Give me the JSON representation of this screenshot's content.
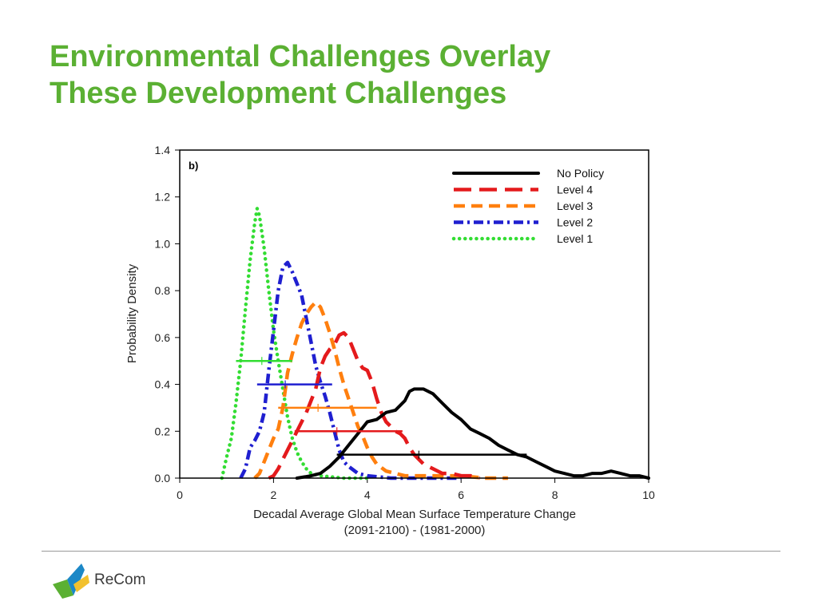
{
  "slide": {
    "title_line1": "Environmental Challenges Overlay",
    "title_line2": "These Development Challenges",
    "logo_text": "ReCom"
  },
  "chart_data": {
    "type": "line",
    "panel_label": "b)",
    "xlabel": "Decadal Average Global Mean Surface Temperature Change",
    "xlabel2": "(2091-2100) - (1981-2000)",
    "ylabel": "Probability Density",
    "xlim": [
      0,
      10
    ],
    "ylim": [
      0,
      1.4
    ],
    "xticks": [
      0,
      2,
      4,
      6,
      8,
      10
    ],
    "yticks": [
      0.0,
      0.2,
      0.4,
      0.6,
      0.8,
      1.0,
      1.2,
      1.4
    ],
    "ytick_labels": [
      "0.0",
      "0.2",
      "0.4",
      "0.6",
      "0.8",
      "1.0",
      "1.2",
      "1.4"
    ],
    "legend_position": "top-right",
    "series": [
      {
        "name": "No Policy",
        "color": "#000000",
        "dash": "solid",
        "points": [
          [
            2.5,
            0.0
          ],
          [
            2.8,
            0.01
          ],
          [
            3.0,
            0.02
          ],
          [
            3.2,
            0.05
          ],
          [
            3.4,
            0.09
          ],
          [
            3.6,
            0.14
          ],
          [
            3.8,
            0.19
          ],
          [
            4.0,
            0.24
          ],
          [
            4.2,
            0.25
          ],
          [
            4.4,
            0.28
          ],
          [
            4.6,
            0.29
          ],
          [
            4.8,
            0.33
          ],
          [
            4.9,
            0.37
          ],
          [
            5.0,
            0.38
          ],
          [
            5.2,
            0.38
          ],
          [
            5.4,
            0.36
          ],
          [
            5.6,
            0.32
          ],
          [
            5.8,
            0.28
          ],
          [
            6.0,
            0.25
          ],
          [
            6.2,
            0.21
          ],
          [
            6.4,
            0.19
          ],
          [
            6.6,
            0.17
          ],
          [
            6.8,
            0.14
          ],
          [
            7.0,
            0.12
          ],
          [
            7.2,
            0.1
          ],
          [
            7.4,
            0.09
          ],
          [
            7.6,
            0.07
          ],
          [
            7.8,
            0.05
          ],
          [
            8.0,
            0.03
          ],
          [
            8.2,
            0.02
          ],
          [
            8.4,
            0.01
          ],
          [
            8.6,
            0.01
          ],
          [
            8.8,
            0.02
          ],
          [
            9.0,
            0.02
          ],
          [
            9.2,
            0.03
          ],
          [
            9.4,
            0.02
          ],
          [
            9.6,
            0.01
          ],
          [
            9.8,
            0.01
          ],
          [
            10.0,
            0.0
          ]
        ],
        "interval": {
          "y": 0.1,
          "low": 3.35,
          "mid": 5.1,
          "high": 7.4
        }
      },
      {
        "name": "Level 4",
        "color": "#e41a1c",
        "dash": "long-dash",
        "points": [
          [
            1.9,
            0.0
          ],
          [
            2.0,
            0.01
          ],
          [
            2.1,
            0.04
          ],
          [
            2.2,
            0.08
          ],
          [
            2.3,
            0.12
          ],
          [
            2.5,
            0.2
          ],
          [
            2.7,
            0.28
          ],
          [
            2.9,
            0.38
          ],
          [
            3.0,
            0.47
          ],
          [
            3.1,
            0.52
          ],
          [
            3.2,
            0.55
          ],
          [
            3.3,
            0.57
          ],
          [
            3.4,
            0.61
          ],
          [
            3.5,
            0.62
          ],
          [
            3.6,
            0.6
          ],
          [
            3.7,
            0.55
          ],
          [
            3.8,
            0.5
          ],
          [
            3.9,
            0.47
          ],
          [
            4.0,
            0.46
          ],
          [
            4.1,
            0.41
          ],
          [
            4.2,
            0.34
          ],
          [
            4.3,
            0.28
          ],
          [
            4.4,
            0.24
          ],
          [
            4.5,
            0.22
          ],
          [
            4.6,
            0.2
          ],
          [
            4.7,
            0.19
          ],
          [
            4.8,
            0.17
          ],
          [
            4.9,
            0.13
          ],
          [
            5.0,
            0.1
          ],
          [
            5.2,
            0.06
          ],
          [
            5.4,
            0.04
          ],
          [
            5.6,
            0.02
          ],
          [
            5.8,
            0.02
          ],
          [
            6.0,
            0.01
          ],
          [
            6.2,
            0.01
          ],
          [
            6.4,
            0.0
          ]
        ],
        "interval": {
          "y": 0.2,
          "low": 2.45,
          "mid": 3.35,
          "high": 4.75
        }
      },
      {
        "name": "Level 3",
        "color": "#ff7f0e",
        "dash": "dash",
        "points": [
          [
            1.6,
            0.0
          ],
          [
            1.7,
            0.02
          ],
          [
            1.8,
            0.07
          ],
          [
            1.9,
            0.12
          ],
          [
            2.0,
            0.17
          ],
          [
            2.1,
            0.21
          ],
          [
            2.2,
            0.3
          ],
          [
            2.3,
            0.45
          ],
          [
            2.4,
            0.53
          ],
          [
            2.5,
            0.6
          ],
          [
            2.6,
            0.66
          ],
          [
            2.7,
            0.7
          ],
          [
            2.8,
            0.73
          ],
          [
            2.9,
            0.75
          ],
          [
            3.0,
            0.73
          ],
          [
            3.1,
            0.68
          ],
          [
            3.2,
            0.62
          ],
          [
            3.3,
            0.55
          ],
          [
            3.4,
            0.47
          ],
          [
            3.5,
            0.4
          ],
          [
            3.6,
            0.34
          ],
          [
            3.7,
            0.28
          ],
          [
            3.8,
            0.22
          ],
          [
            3.9,
            0.18
          ],
          [
            4.0,
            0.13
          ],
          [
            4.1,
            0.09
          ],
          [
            4.2,
            0.06
          ],
          [
            4.4,
            0.03
          ],
          [
            4.6,
            0.02
          ],
          [
            4.8,
            0.01
          ],
          [
            5.0,
            0.01
          ],
          [
            5.5,
            0.01
          ],
          [
            6.0,
            0.01
          ],
          [
            6.5,
            0.0
          ],
          [
            7.0,
            0.0
          ]
        ],
        "interval": {
          "y": 0.3,
          "low": 2.1,
          "mid": 2.95,
          "high": 4.2
        }
      },
      {
        "name": "Level 2",
        "color": "#1f1fd0",
        "dash": "dash-dot",
        "points": [
          [
            1.3,
            0.0
          ],
          [
            1.4,
            0.04
          ],
          [
            1.5,
            0.13
          ],
          [
            1.6,
            0.16
          ],
          [
            1.7,
            0.2
          ],
          [
            1.8,
            0.28
          ],
          [
            1.9,
            0.46
          ],
          [
            2.0,
            0.63
          ],
          [
            2.1,
            0.8
          ],
          [
            2.2,
            0.9
          ],
          [
            2.3,
            0.92
          ],
          [
            2.4,
            0.88
          ],
          [
            2.5,
            0.83
          ],
          [
            2.6,
            0.78
          ],
          [
            2.7,
            0.68
          ],
          [
            2.8,
            0.58
          ],
          [
            2.9,
            0.48
          ],
          [
            3.0,
            0.41
          ],
          [
            3.1,
            0.35
          ],
          [
            3.2,
            0.28
          ],
          [
            3.3,
            0.2
          ],
          [
            3.4,
            0.12
          ],
          [
            3.5,
            0.07
          ],
          [
            3.6,
            0.05
          ],
          [
            3.8,
            0.02
          ],
          [
            4.0,
            0.01
          ],
          [
            4.5,
            0.0
          ],
          [
            5.0,
            0.0
          ],
          [
            6.0,
            0.0
          ]
        ],
        "interval": {
          "y": 0.4,
          "low": 1.65,
          "mid": 2.25,
          "high": 3.25
        }
      },
      {
        "name": "Level 1",
        "color": "#33dd33",
        "dash": "dotted",
        "points": [
          [
            0.9,
            0.0
          ],
          [
            1.0,
            0.09
          ],
          [
            1.1,
            0.17
          ],
          [
            1.2,
            0.32
          ],
          [
            1.3,
            0.5
          ],
          [
            1.4,
            0.72
          ],
          [
            1.5,
            0.93
          ],
          [
            1.6,
            1.09
          ],
          [
            1.65,
            1.15
          ],
          [
            1.7,
            1.12
          ],
          [
            1.8,
            0.98
          ],
          [
            1.9,
            0.8
          ],
          [
            2.0,
            0.63
          ],
          [
            2.1,
            0.5
          ],
          [
            2.2,
            0.38
          ],
          [
            2.3,
            0.26
          ],
          [
            2.4,
            0.17
          ],
          [
            2.5,
            0.11
          ],
          [
            2.6,
            0.07
          ],
          [
            2.7,
            0.04
          ],
          [
            2.8,
            0.02
          ],
          [
            3.0,
            0.01
          ],
          [
            3.5,
            0.0
          ],
          [
            4.0,
            0.0
          ]
        ],
        "interval": {
          "y": 0.5,
          "low": 1.2,
          "mid": 1.75,
          "high": 2.4
        }
      }
    ]
  }
}
